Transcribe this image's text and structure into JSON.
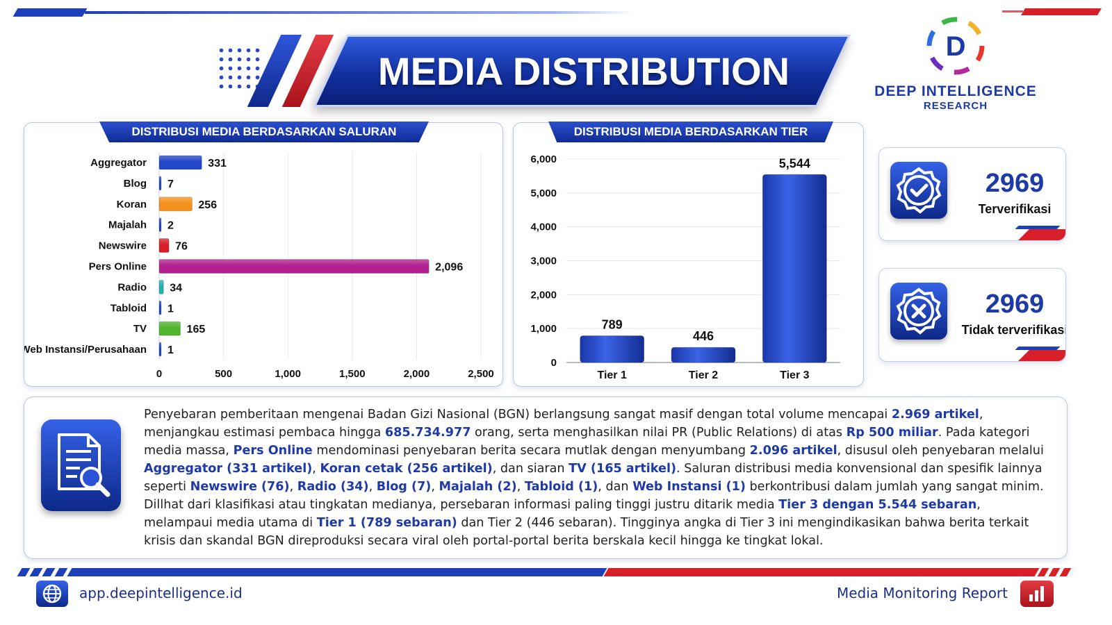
{
  "header": {
    "title": "MEDIA DISTRIBUTION"
  },
  "logo": {
    "name": "DEEP INTELLIGENCE",
    "sub": "RESEARCH",
    "letter": "D"
  },
  "chart_data": [
    {
      "type": "bar",
      "orientation": "horizontal",
      "title": "DISTRIBUSI MEDIA BERDASARKAN SALURAN",
      "categories": [
        "Aggregator",
        "Blog",
        "Koran",
        "Majalah",
        "Newswire",
        "Pers Online",
        "Radio",
        "Tabloid",
        "TV",
        "Web Instansi/Perusahaan"
      ],
      "values": [
        331,
        7,
        256,
        2,
        76,
        2096,
        34,
        1,
        165,
        1
      ],
      "value_labels": [
        "331",
        "7",
        "256",
        "2",
        "76",
        "2,096",
        "34",
        "1",
        "165",
        "1"
      ],
      "colors": [
        "#2347c8",
        "#2347c8",
        "#f3901e",
        "#2347c8",
        "#d71f26",
        "#b31f8f",
        "#1fb3b0",
        "#2347c8",
        "#4fb52d",
        "#2347c8"
      ],
      "xlim": [
        0,
        2500
      ],
      "xticks": [
        0,
        500,
        1000,
        1500,
        2000,
        2500
      ],
      "xtick_labels": [
        "0",
        "500",
        "1,000",
        "1,500",
        "2,000",
        "2,500"
      ],
      "grid": true
    },
    {
      "type": "bar",
      "title": "DISTRIBUSI MEDIA BERDASARKAN TIER",
      "categories": [
        "Tier 1",
        "Tier 2",
        "Tier 3"
      ],
      "values": [
        789,
        446,
        5544
      ],
      "value_labels": [
        "789",
        "446",
        "5,544"
      ],
      "color": "#1d3fb8",
      "ylim": [
        0,
        6000
      ],
      "yticks": [
        0,
        1000,
        2000,
        3000,
        4000,
        5000,
        6000
      ],
      "ytick_labels": [
        "0",
        "1,000",
        "2,000",
        "3,000",
        "4,000",
        "5,000",
        "6,000"
      ],
      "grid": true
    }
  ],
  "kpi": [
    {
      "value": "2969",
      "label": "Terverifikasi",
      "icon": "check-badge-icon"
    },
    {
      "value": "2969",
      "label": "Tidak terverifikasi",
      "icon": "x-badge-icon"
    }
  ],
  "narrative": {
    "icon": "document-search-icon",
    "segments": [
      {
        "t": "Penyebaran pemberitaan mengenai Badan Gizi Nasional (BGN) berlangsung sangat masif dengan total volume mencapai "
      },
      {
        "t": "2.969 artikel",
        "h": true
      },
      {
        "t": ", menjangkau estimasi pembaca hingga "
      },
      {
        "t": "685.734.977",
        "h": true
      },
      {
        "t": " orang, serta menghasilkan nilai PR (Public Relations) di atas "
      },
      {
        "t": "Rp 500 miliar",
        "h": true
      },
      {
        "t": ". Pada kategori media massa, "
      },
      {
        "t": "Pers Online",
        "h": true
      },
      {
        "t": " mendominasi penyebaran berita secara mutlak dengan menyumbang "
      },
      {
        "t": "2.096 artikel",
        "h": true
      },
      {
        "t": ", disusul oleh penyebaran melalui "
      },
      {
        "t": "Aggregator (331 artikel)",
        "h": true
      },
      {
        "t": ", "
      },
      {
        "t": "Koran cetak (256 artikel)",
        "h": true
      },
      {
        "t": ", dan siaran "
      },
      {
        "t": "TV (165 artikel)",
        "h": true
      },
      {
        "t": ". Saluran distribusi media konvensional dan spesifik lainnya seperti "
      },
      {
        "t": "Newswire (76)",
        "h": true
      },
      {
        "t": ", "
      },
      {
        "t": "Radio (34)",
        "h": true
      },
      {
        "t": ", "
      },
      {
        "t": "Blog (7)",
        "h": true
      },
      {
        "t": ", "
      },
      {
        "t": "Majalah (2)",
        "h": true
      },
      {
        "t": ", "
      },
      {
        "t": "Tabloid (1)",
        "h": true
      },
      {
        "t": ", dan "
      },
      {
        "t": "Web Instansi (1)",
        "h": true
      },
      {
        "t": " berkontribusi dalam jumlah yang sangat minim. Dillhat dari klasifikasi atau tingkatan medianya, persebaran informasi paling tinggi justru ditarik media "
      },
      {
        "t": "Tier 3 dengan 5.544 sebaran",
        "h": true
      },
      {
        "t": ", melampaui media utama di "
      },
      {
        "t": "Tier 1 (789 sebaran)",
        "h": true
      },
      {
        "t": " dan Tier 2 (446 sebaran). Tingginya angka di Tier 3 ini mengindikasikan bahwa berita terkait krisis dan skandal BGN direproduksi secara viral oleh portal-portal berita berskala kecil hingga ke tingkat lokal."
      }
    ]
  },
  "footer": {
    "url": "app.deepintelligence.id",
    "report": "Media Monitoring Report"
  }
}
